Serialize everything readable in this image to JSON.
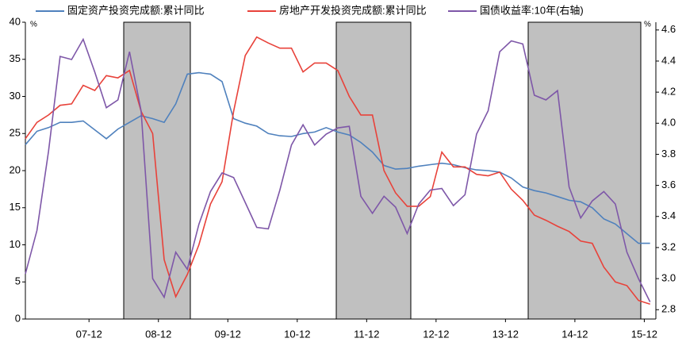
{
  "chart_data": {
    "type": "line",
    "legend": "top",
    "y_unit": "%",
    "y2_unit": "%",
    "x": [
      0,
      2,
      4,
      6,
      8,
      10,
      12,
      14,
      16,
      18,
      20,
      22,
      24,
      26,
      28,
      30,
      32,
      34,
      36,
      38,
      40,
      42,
      44,
      46,
      48,
      50,
      52,
      54,
      56,
      58,
      60,
      62,
      64,
      66,
      68,
      70,
      72,
      74,
      76,
      78,
      80,
      82,
      84,
      86,
      88,
      90,
      92,
      94,
      96,
      98,
      100,
      102,
      104,
      106,
      108
    ],
    "xlim": [
      0,
      109
    ],
    "xticks": [
      {
        "value": 11,
        "label": "07-12"
      },
      {
        "value": 23,
        "label": "08-12"
      },
      {
        "value": 35,
        "label": "09-12"
      },
      {
        "value": 47,
        "label": "10-12"
      },
      {
        "value": 59,
        "label": "11-12"
      },
      {
        "value": 71,
        "label": "12-12"
      },
      {
        "value": 83,
        "label": "13-12"
      },
      {
        "value": 95,
        "label": "14-12"
      },
      {
        "value": 107,
        "label": "15-12"
      }
    ],
    "ylim": [
      0,
      40
    ],
    "yticks": [
      0,
      5,
      10,
      15,
      20,
      25,
      30,
      35,
      40
    ],
    "y2lim": [
      2.74,
      4.65
    ],
    "y2ticks": [
      2.8,
      {
        "value": 3,
        "label": "3.0"
      },
      3.2,
      3.4,
      3.6,
      3.8,
      {
        "value": 4,
        "label": "4.0"
      },
      4.2,
      4.4,
      4.6
    ],
    "series": [
      {
        "name": "固定资产投资完成额:累计同比",
        "color": "#4f81bd",
        "values": [
          23.5,
          25.3,
          25.8,
          26.5,
          26.5,
          26.7,
          25.5,
          24.3,
          25.6,
          26.5,
          27.4,
          27,
          26.5,
          29,
          33,
          33.2,
          33,
          32,
          27,
          26.4,
          26,
          25,
          24.7,
          24.6,
          25,
          25.2,
          25.8,
          25.2,
          24.8,
          23.8,
          22.5,
          20.7,
          20.2,
          20.3,
          20.6,
          20.8,
          21,
          20.8,
          20.4,
          20.1,
          20,
          19.8,
          19,
          17.8,
          17.3,
          17,
          16.5,
          16,
          15.8,
          15,
          13.5,
          12.8,
          11.5,
          10.2,
          10.2
        ]
      },
      {
        "name": "房地产开发投资完成额:累计同比",
        "color": "#e8423a",
        "values": [
          24.3,
          26.5,
          27.5,
          28.8,
          29,
          31.5,
          30.8,
          32.8,
          32.5,
          33.5,
          28,
          25,
          8,
          3,
          6,
          10,
          15.5,
          18.5,
          28,
          35.5,
          38,
          37.2,
          36.5,
          36.5,
          33.3,
          34.5,
          34.5,
          33.5,
          30,
          27.5,
          27.5,
          20,
          17,
          15.2,
          15.2,
          16.5,
          22.5,
          20.5,
          20.5,
          19.5,
          19.3,
          19.8,
          17.5,
          16,
          14,
          13.3,
          12.5,
          11.8,
          10.5,
          10.2,
          7,
          5,
          4.5,
          2.5,
          2
        ]
      },
      {
        "name": "国债收益率:10年(右轴)",
        "color": "#7e57a8",
        "axis": "y2",
        "values": [
          3.03,
          3.31,
          3.82,
          4.43,
          4.41,
          4.54,
          4.33,
          4.1,
          4.15,
          4.46,
          4.08,
          3,
          2.88,
          3.17,
          3.06,
          3.35,
          3.56,
          3.68,
          3.65,
          3.49,
          3.33,
          3.32,
          3.57,
          3.86,
          3.99,
          3.86,
          3.93,
          3.97,
          3.98,
          3.53,
          3.42,
          3.53,
          3.46,
          3.29,
          3.48,
          3.57,
          3.58,
          3.47,
          3.54,
          3.93,
          4.08,
          4.46,
          4.53,
          4.51,
          4.18,
          4.15,
          4.21,
          3.59,
          3.39,
          3.5,
          3.56,
          3.48,
          3.17,
          3,
          2.85
        ]
      }
    ]
  }
}
